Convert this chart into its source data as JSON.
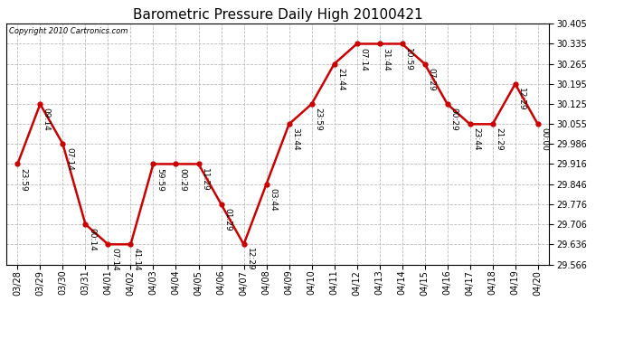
{
  "title": "Barometric Pressure Daily High 20100421",
  "copyright": "Copyright 2010 Cartronics.com",
  "x_labels": [
    "03/28",
    "03/29",
    "03/30",
    "03/31",
    "04/01",
    "04/02",
    "04/03",
    "04/04",
    "04/05",
    "04/06",
    "04/07",
    "04/08",
    "04/09",
    "04/10",
    "04/11",
    "04/12",
    "04/13",
    "04/14",
    "04/15",
    "04/16",
    "04/17",
    "04/18",
    "04/19",
    "04/20"
  ],
  "y_values": [
    29.916,
    30.125,
    29.986,
    29.706,
    29.636,
    29.636,
    29.916,
    29.916,
    29.916,
    29.776,
    29.636,
    29.846,
    30.055,
    30.125,
    30.265,
    30.335,
    30.335,
    30.335,
    30.265,
    30.125,
    30.055,
    30.055,
    30.195,
    30.055
  ],
  "point_labels": [
    "23:59",
    "09:14",
    "07:14",
    "00:14",
    "07:14",
    "41:14",
    "59:59",
    "00:29",
    "11:29",
    "01:29",
    "12:29",
    "03:44",
    "31:44",
    "23:59",
    "21:44",
    "07:14",
    "31:44",
    "10:59",
    "07:29",
    "00:29",
    "23:44",
    "21:29",
    "12:29",
    "00:00"
  ],
  "ylim": [
    29.566,
    30.405
  ],
  "yticks": [
    30.405,
    30.335,
    30.265,
    30.195,
    30.125,
    30.055,
    29.986,
    29.916,
    29.846,
    29.776,
    29.706,
    29.636,
    29.566
  ],
  "line_color": "#cc0000",
  "marker_color": "#cc0000",
  "bg_color": "#ffffff",
  "grid_color": "#bbbbbb",
  "title_fontsize": 11,
  "tick_fontsize": 7,
  "point_label_fontsize": 6.5
}
